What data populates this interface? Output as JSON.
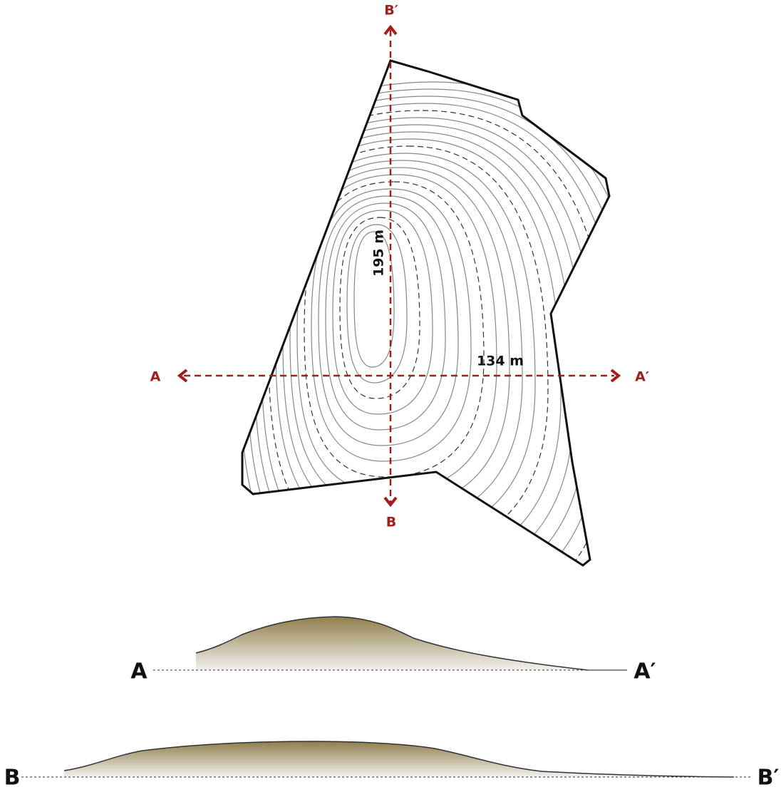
{
  "map": {
    "section_lines": [
      {
        "start_label": "A",
        "end_label": "A′",
        "length": "134 m"
      },
      {
        "start_label": "B",
        "end_label": "B′",
        "length": "195 m"
      }
    ]
  },
  "profiles": [
    {
      "start_label": "A",
      "end_label": "A′"
    },
    {
      "start_label": "B",
      "end_label": "B′"
    }
  ]
}
